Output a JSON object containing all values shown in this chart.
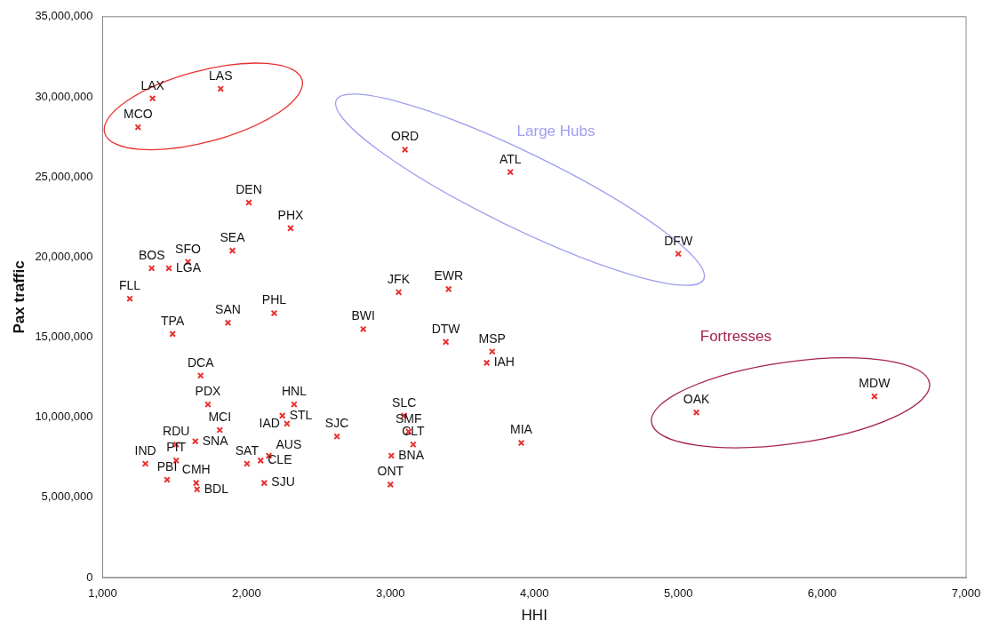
{
  "chart_data": {
    "type": "scatter",
    "xlabel": "HHI",
    "ylabel": "Pax traffic",
    "xlim": [
      1000,
      7000
    ],
    "xticks": [
      {
        "value": 1000,
        "label": "1,000"
      },
      {
        "value": 2000,
        "label": "2,000"
      },
      {
        "value": 3000,
        "label": "3,000"
      },
      {
        "value": 4000,
        "label": "4,000"
      },
      {
        "value": 5000,
        "label": "5,000"
      },
      {
        "value": 6000,
        "label": "6,000"
      },
      {
        "value": 7000,
        "label": "7,000"
      }
    ],
    "ylim": [
      0,
      35000000
    ],
    "yticks": [
      0,
      {
        "value": 5000000,
        "label": "5,000,000"
      },
      {
        "value": 10000000,
        "label": "10,000,000"
      },
      {
        "value": 15000000,
        "label": "15,000,000"
      },
      {
        "value": 20000000,
        "label": "20,000,000"
      },
      {
        "value": 25000000,
        "label": "25,000,000"
      },
      {
        "value": 30000000,
        "label": "30,000,000"
      },
      {
        "value": 35000000,
        "label": "35,000,000"
      }
    ],
    "grid": false,
    "legend": false,
    "marker": "cross",
    "series": [
      {
        "color": "#e8312f",
        "x": [
          1347,
          1820,
          1246,
          3101,
          3833,
          5000,
          2016,
          2306,
          1902,
          1593,
          1341,
          1460,
          1189,
          3057,
          3404,
          2192,
          1871,
          1486,
          2811,
          3385,
          3707,
          3669,
          1681,
          1732,
          2331,
          2249,
          2281,
          1814,
          1511,
          1644,
          1511,
          1297,
          1448,
          1650,
          1656,
          2003,
          2098,
          2155,
          2123,
          2628,
          3095,
          3126,
          3158,
          3006,
          3000,
          3909,
          5126,
          6363
        ],
        "values": [
          29900000,
          30500000,
          28100000,
          26700000,
          25300000,
          20200000,
          23400000,
          21800000,
          20400000,
          19700000,
          19300000,
          19300000,
          17400000,
          17800000,
          18000000,
          16500000,
          15900000,
          15200000,
          15500000,
          14700000,
          14100000,
          13400000,
          12600000,
          10800000,
          10800000,
          10100000,
          9600000,
          9200000,
          8300000,
          8500000,
          7300000,
          7100000,
          6100000,
          5900000,
          5500000,
          7100000,
          7300000,
          7600000,
          5900000,
          8800000,
          10100000,
          9100000,
          8300000,
          7600000,
          5800000,
          8400000,
          10300000,
          11300000
        ]
      }
    ],
    "annotations": [
      "Large Hubs",
      "Fortresses",
      {
        "text": "LAX",
        "x": 1347,
        "y": 29900000
      },
      {
        "text": "LAS",
        "x": 1820,
        "y": 30500000
      },
      {
        "text": "MCO",
        "x": 1246,
        "y": 28100000
      },
      {
        "text": "ORD",
        "x": 3101,
        "y": 26700000
      },
      {
        "text": "ATL",
        "x": 3833,
        "y": 25300000
      },
      {
        "text": "DFW",
        "x": 5000,
        "y": 20200000
      },
      {
        "text": "DEN",
        "x": 2016,
        "y": 23400000
      },
      {
        "text": "PHX",
        "x": 2306,
        "y": 21800000
      },
      {
        "text": "SEA",
        "x": 1902,
        "y": 20400000
      },
      {
        "text": "SFO",
        "x": 1593,
        "y": 19700000
      },
      {
        "text": "BOS",
        "x": 1341,
        "y": 19300000
      },
      {
        "text": "LGA",
        "x": 1460,
        "y": 19300000
      },
      {
        "text": "FLL",
        "x": 1189,
        "y": 17400000
      },
      {
        "text": "JFK",
        "x": 3057,
        "y": 17800000
      },
      {
        "text": "EWR",
        "x": 3404,
        "y": 18000000
      },
      {
        "text": "PHL",
        "x": 2192,
        "y": 16500000
      },
      {
        "text": "SAN",
        "x": 1871,
        "y": 15900000
      },
      {
        "text": "TPA",
        "x": 1486,
        "y": 15200000
      },
      {
        "text": "BWI",
        "x": 2811,
        "y": 15500000
      },
      {
        "text": "DTW",
        "x": 3385,
        "y": 14700000
      },
      {
        "text": "MSP",
        "x": 3707,
        "y": 14100000
      },
      {
        "text": "IAH",
        "x": 3669,
        "y": 13400000
      },
      {
        "text": "DCA",
        "x": 1681,
        "y": 12600000
      },
      {
        "text": "PDX",
        "x": 1732,
        "y": 10800000
      },
      {
        "text": "HNL",
        "x": 2331,
        "y": 10800000
      },
      {
        "text": "STL",
        "x": 2249,
        "y": 10100000
      },
      {
        "text": "IAD",
        "x": 2281,
        "y": 9600000
      },
      {
        "text": "MCI",
        "x": 1814,
        "y": 9200000
      },
      {
        "text": "RDU",
        "x": 1511,
        "y": 8300000
      },
      {
        "text": "SNA",
        "x": 1644,
        "y": 8500000
      },
      {
        "text": "PIT",
        "x": 1511,
        "y": 7300000
      },
      {
        "text": "IND",
        "x": 1297,
        "y": 7100000
      },
      {
        "text": "PBI",
        "x": 1448,
        "y": 6100000
      },
      {
        "text": "CMH",
        "x": 1650,
        "y": 5900000
      },
      {
        "text": "BDL",
        "x": 1656,
        "y": 5500000
      },
      {
        "text": "SAT",
        "x": 2003,
        "y": 7100000
      },
      {
        "text": "CLE",
        "x": 2098,
        "y": 7300000
      },
      {
        "text": "AUS",
        "x": 2155,
        "y": 7600000
      },
      {
        "text": "SJU",
        "x": 2123,
        "y": 5900000
      },
      {
        "text": "SJC",
        "x": 2628,
        "y": 8800000
      },
      {
        "text": "SLC",
        "x": 3095,
        "y": 10100000
      },
      {
        "text": "SMF",
        "x": 3126,
        "y": 9100000
      },
      {
        "text": "CLT",
        "x": 3158,
        "y": 8300000
      },
      {
        "text": "BNA",
        "x": 3006,
        "y": 7600000
      },
      {
        "text": "ONT",
        "x": 3000,
        "y": 5800000
      },
      {
        "text": "MIA",
        "x": 3909,
        "y": 8400000
      },
      {
        "text": "OAK",
        "x": 5126,
        "y": 10300000
      },
      {
        "text": "MDW",
        "x": 6363,
        "y": 11300000
      }
    ]
  }
}
